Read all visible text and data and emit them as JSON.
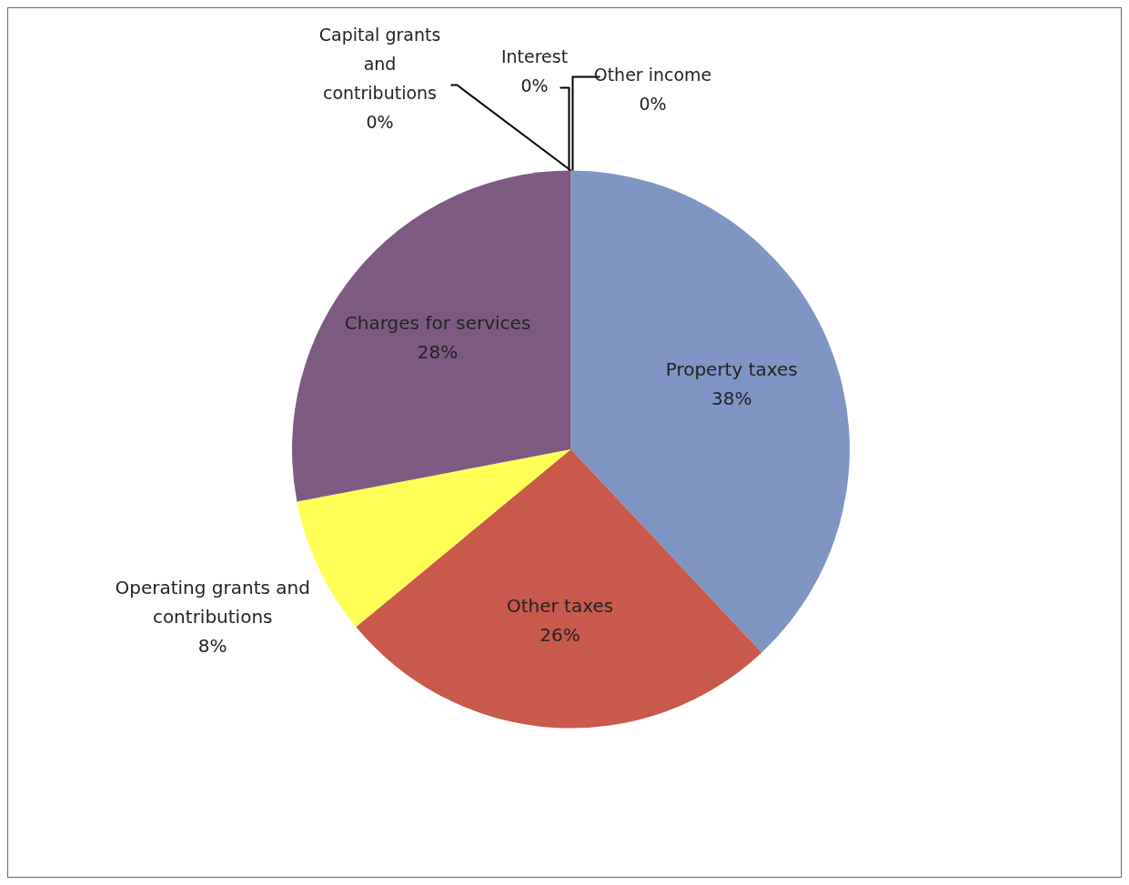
{
  "chart_data": {
    "type": "pie",
    "categories": [
      "Property taxes",
      "Other taxes",
      "Operating grants and contributions",
      "Charges for services",
      "Capital grants and contributions",
      "Interest",
      "Other income"
    ],
    "values": [
      38,
      26,
      8,
      28,
      0,
      0,
      0
    ],
    "colors": [
      "#7f95c3",
      "#c9594b",
      "#ffff55",
      "#7e5a83",
      "#e0507a",
      "#d84a8a",
      "#e25ca0"
    ],
    "value_labels": [
      "38%",
      "26%",
      "8%",
      "28%",
      "0%",
      "0%",
      "0%"
    ],
    "legend": false
  }
}
